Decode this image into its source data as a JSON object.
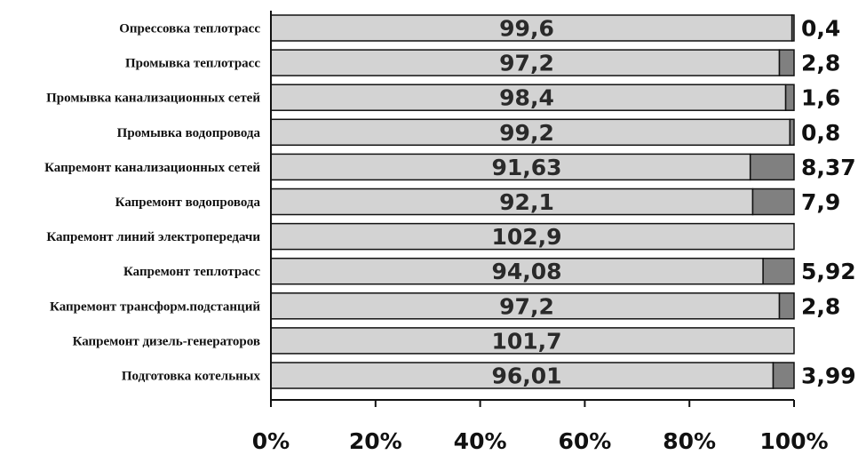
{
  "chart_data": {
    "type": "bar",
    "orientation": "horizontal",
    "stacked": true,
    "categories": [
      "Опрессовка  теплотрасс",
      "Промывка  теплотрасс",
      "Промывка  канализационных  сетей",
      "Промывка водопровода",
      "Капремонт  канализационных  сетей",
      "Капремонт  водопровода",
      "Капремонт  линий  электропередачи",
      "Капремонт  теплотрасс",
      "Капремонт  трансформ.подстанций",
      "Капремонт дизель-генераторов",
      "Подготовка  котельных"
    ],
    "series": [
      {
        "values": [
          99.6,
          97.2,
          98.4,
          99.2,
          91.63,
          92.1,
          102.9,
          94.08,
          97.2,
          101.7,
          96.01
        ],
        "labels": [
          "99,6",
          "97,2",
          "98,4",
          "99,2",
          "91,63",
          "92,1",
          "102,9",
          "94,08",
          "97,2",
          "101,7",
          "96,01"
        ],
        "color": "#d3d3d3"
      },
      {
        "values": [
          0.4,
          2.8,
          1.6,
          0.8,
          8.37,
          7.9,
          0,
          5.92,
          2.8,
          0,
          3.99
        ],
        "labels": [
          "0,4",
          "2,8",
          "1,6",
          "0,8",
          "8,37",
          "7,9",
          "",
          "5,92",
          "2,8",
          "",
          "3,99"
        ],
        "color": "#808080"
      }
    ],
    "x_ticks": [
      "0%",
      "20%",
      "40%",
      "60%",
      "80%",
      "100%"
    ],
    "xlim": [
      0,
      100
    ],
    "grid": false,
    "legend": "none"
  }
}
